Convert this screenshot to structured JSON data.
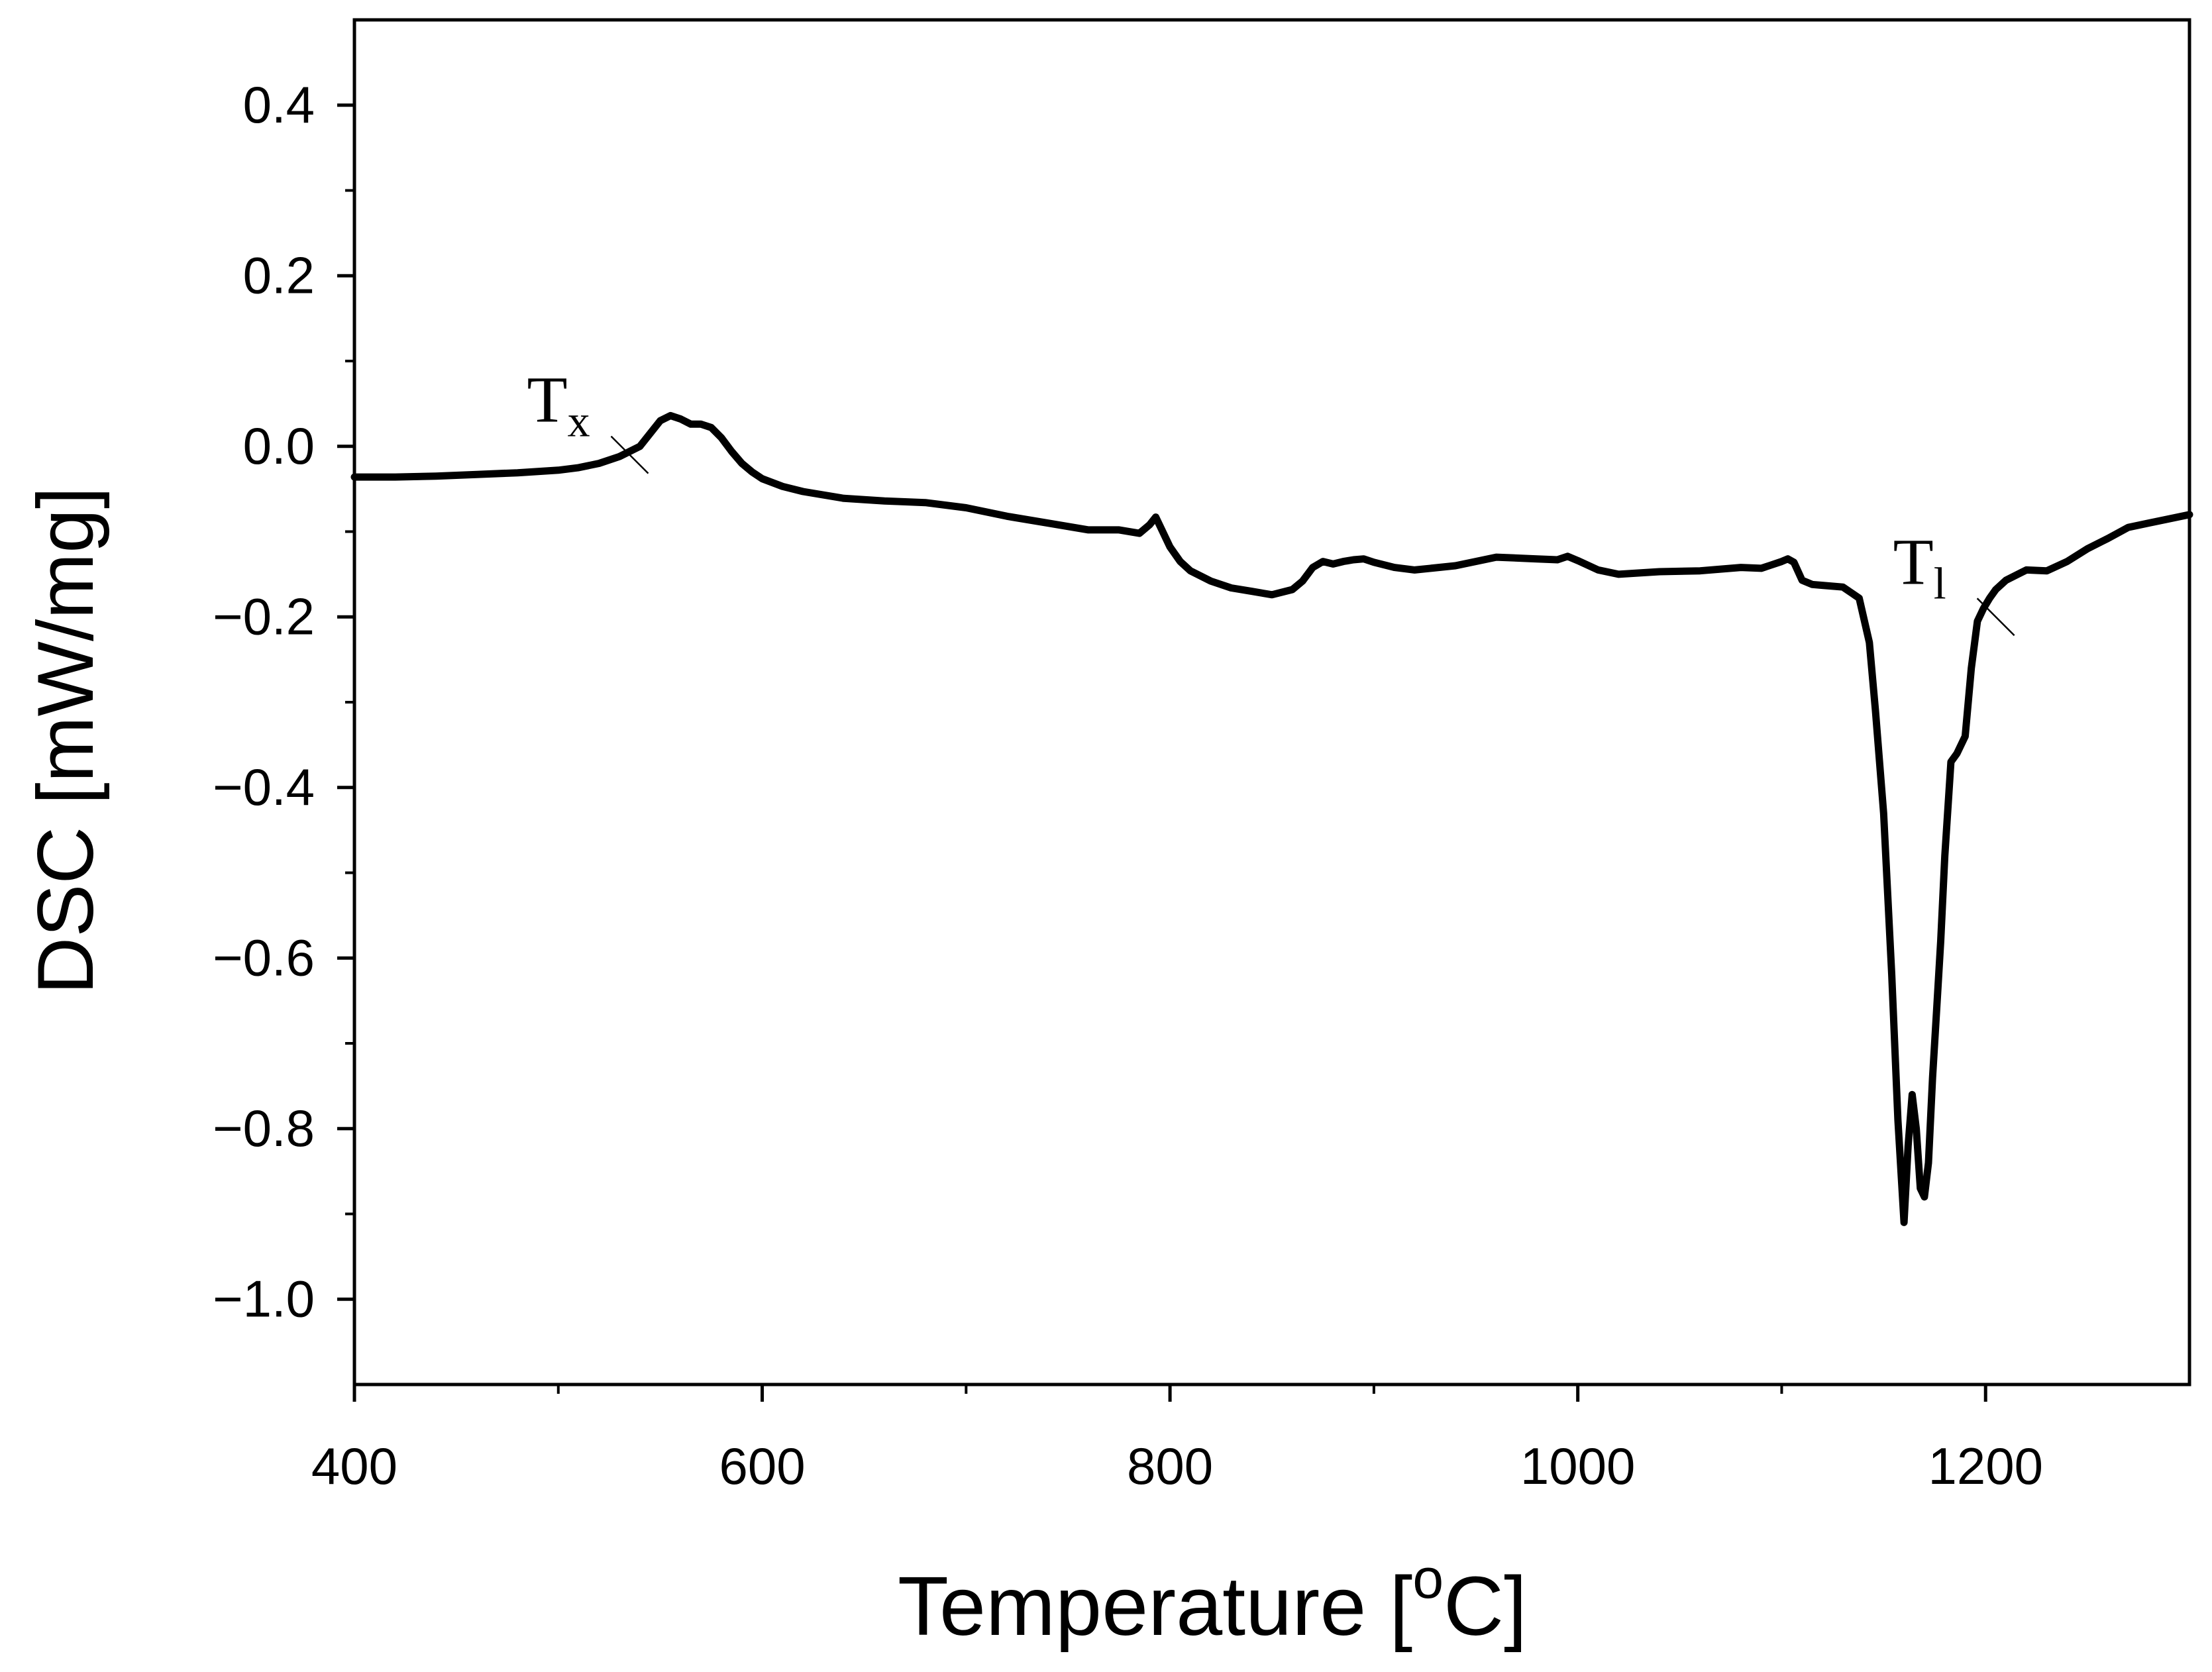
{
  "chart_data": {
    "type": "line",
    "xlabel": "Temperature [",
    "xlabel_sup": "o",
    "xlabel_tail": "C]",
    "ylabel": "DSC [mW/mg]",
    "xlim": [
      400,
      1300
    ],
    "ylim": [
      -1.1,
      0.5
    ],
    "x_ticks": [
      400,
      600,
      800,
      1000,
      1200
    ],
    "x_tick_labels": [
      "400",
      "600",
      "800",
      "1000",
      "1200"
    ],
    "x_minor_ticks": [
      500,
      700,
      900,
      1100
    ],
    "y_ticks": [
      0.4,
      0.2,
      0.0,
      -0.2,
      -0.4,
      -0.6,
      -0.8,
      -1.0
    ],
    "y_tick_labels": [
      "0.4",
      "0.2",
      "0.0",
      "−0.2",
      "−0.4",
      "−0.6",
      "−0.8",
      "−1.0"
    ],
    "y_minor_ticks": [
      0.3,
      0.1,
      -0.1,
      -0.3,
      -0.5,
      -0.7,
      -0.9
    ],
    "grid": false,
    "line_color": "#000000",
    "series": [
      {
        "x": [
          400,
          420,
          440,
          460,
          480,
          500,
          510,
          520,
          530,
          540,
          545,
          550,
          555,
          560,
          565,
          570,
          575,
          580,
          585,
          590,
          595,
          600,
          610,
          620,
          640,
          660,
          680,
          700,
          720,
          740,
          760,
          775,
          785,
          790,
          793,
          796,
          800,
          805,
          810,
          820,
          830,
          840,
          850,
          860,
          865,
          870,
          875,
          880,
          885,
          890,
          895,
          900,
          910,
          920,
          940,
          960,
          980,
          990,
          995,
          1000,
          1010,
          1020,
          1040,
          1060,
          1080,
          1090,
          1100,
          1103,
          1106,
          1110,
          1115,
          1120,
          1130,
          1138,
          1143,
          1146,
          1150,
          1154,
          1157,
          1160,
          1162,
          1164,
          1166,
          1168,
          1170,
          1172,
          1174,
          1176,
          1178,
          1180,
          1183,
          1186,
          1190,
          1193,
          1196,
          1199,
          1202,
          1205,
          1210,
          1220,
          1230,
          1240,
          1250,
          1260,
          1270,
          1280,
          1290,
          1300
        ],
        "y": [
          -0.036,
          -0.036,
          -0.035,
          -0.033,
          -0.031,
          -0.028,
          -0.025,
          -0.02,
          -0.012,
          0.0,
          0.015,
          0.03,
          0.036,
          0.032,
          0.026,
          0.026,
          0.022,
          0.01,
          -0.006,
          -0.02,
          -0.03,
          -0.038,
          -0.047,
          -0.053,
          -0.061,
          -0.064,
          -0.066,
          -0.072,
          -0.082,
          -0.09,
          -0.098,
          -0.098,
          -0.102,
          -0.092,
          -0.083,
          -0.098,
          -0.118,
          -0.135,
          -0.146,
          -0.158,
          -0.166,
          -0.17,
          -0.174,
          -0.168,
          -0.158,
          -0.142,
          -0.135,
          -0.138,
          -0.135,
          -0.133,
          -0.132,
          -0.136,
          -0.142,
          -0.145,
          -0.14,
          -0.13,
          -0.132,
          -0.133,
          -0.129,
          -0.134,
          -0.145,
          -0.15,
          -0.147,
          -0.146,
          -0.142,
          -0.143,
          -0.135,
          -0.132,
          -0.136,
          -0.157,
          -0.162,
          -0.163,
          -0.165,
          -0.178,
          -0.23,
          -0.31,
          -0.43,
          -0.62,
          -0.79,
          -0.91,
          -0.82,
          -0.76,
          -0.8,
          -0.87,
          -0.88,
          -0.84,
          -0.74,
          -0.66,
          -0.58,
          -0.48,
          -0.37,
          -0.36,
          -0.34,
          -0.26,
          -0.205,
          -0.19,
          -0.178,
          -0.168,
          -0.157,
          -0.145,
          -0.146,
          -0.135,
          -0.12,
          -0.108,
          -0.095,
          -0.09,
          -0.085,
          -0.08
        ]
      }
    ],
    "annotations": [
      {
        "base": "T",
        "sub": "x",
        "x": 535,
        "y": -0.01
      },
      {
        "base": "T",
        "sub": "l",
        "x": 1205,
        "y": -0.2
      }
    ]
  }
}
